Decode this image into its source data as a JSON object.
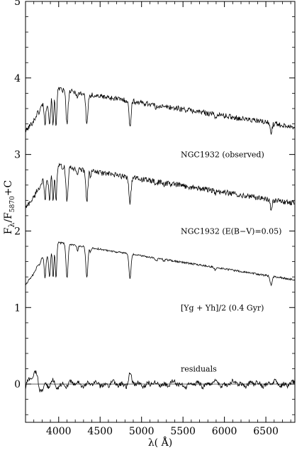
{
  "chart_data": {
    "type": "line",
    "xlabel": "λ( Å)",
    "ylabel_main": "F",
    "ylabel_lambda": "λ",
    "ylabel_slash": "/F",
    "ylabel_sub": "5870",
    "ylabel_tail": "+C",
    "xlim": [
      3600,
      6850
    ],
    "ylim": [
      -0.5,
      5
    ],
    "xticks": [
      "4000",
      "4500",
      "5000",
      "5500",
      "6000",
      "6500"
    ],
    "yticks": [
      "0",
      "1",
      "2",
      "3",
      "4",
      "5"
    ],
    "zero_line": 0,
    "grid": false,
    "series": [
      {
        "name": "NGC1932 (observed)",
        "offset": 2.85,
        "feature_depth": 1.0,
        "noise": 0.035
      },
      {
        "name": "NGC1932 (E(B−V)=0.05)",
        "offset": 1.85,
        "feature_depth": 1.0,
        "noise": 0.035
      },
      {
        "name": "[Yg + Yh]/2 (0.4 Gyr)",
        "offset": 0.85,
        "feature_depth": 1.0,
        "noise": 0.012
      },
      {
        "name": "residuals",
        "offset": 0.0,
        "feature_depth": 0.0,
        "noise": 0.03
      }
    ]
  }
}
